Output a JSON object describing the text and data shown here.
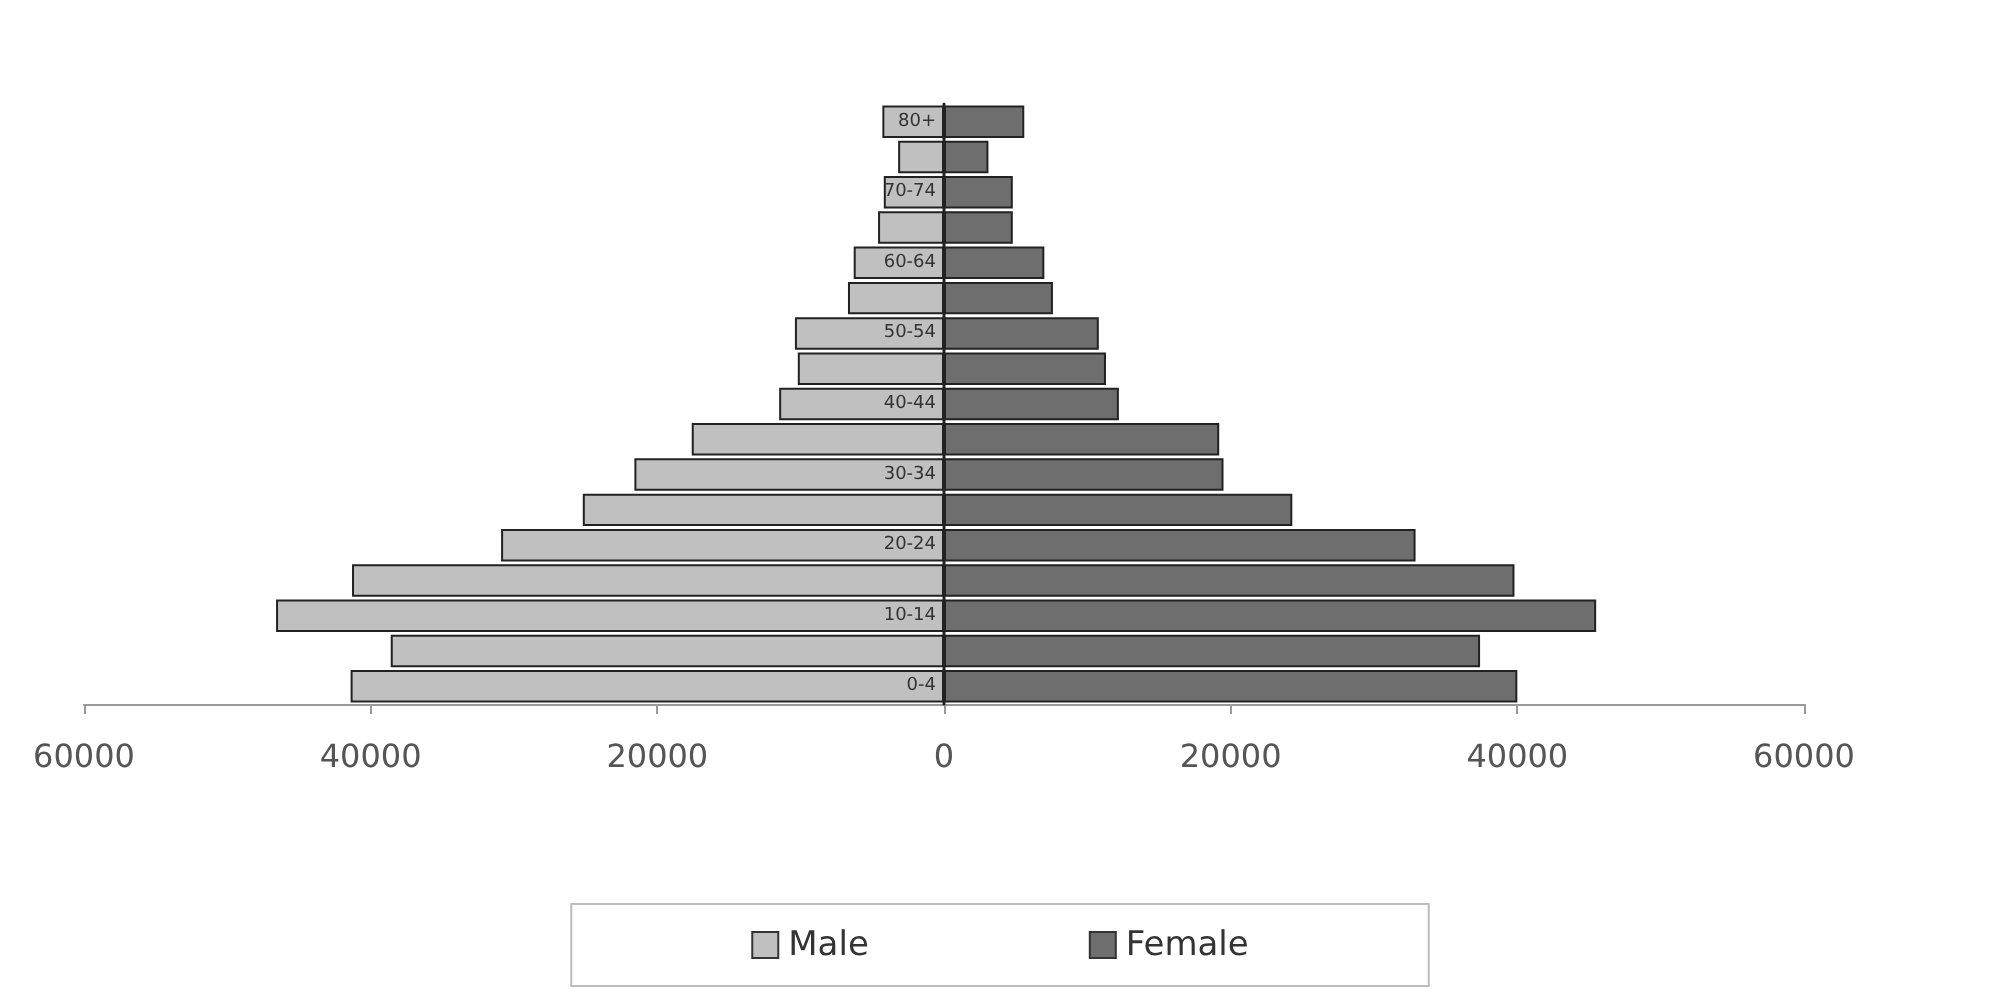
{
  "chart_data": {
    "type": "bar",
    "orientation": "horizontal",
    "categories": [
      "80+",
      null,
      "70-74",
      null,
      "60-64",
      null,
      "50-54",
      null,
      "40-44",
      null,
      "30-34",
      null,
      "20-24",
      null,
      "10-14",
      null,
      "0-4"
    ],
    "series": [
      {
        "name": "Male",
        "color": "#c0c0c0",
        "values": [
          -4300,
          -3200,
          -4200,
          -4600,
          -6300,
          -6700,
          -10400,
          -10200,
          -11500,
          -17600,
          -21600,
          -25200,
          -30900,
          -41300,
          -46600,
          -38600,
          -41400
        ]
      },
      {
        "name": "Female",
        "color": "#6e6e6e",
        "values": [
          5600,
          3100,
          4800,
          4800,
          7000,
          7600,
          10800,
          11300,
          12200,
          19200,
          19500,
          24300,
          32900,
          39800,
          45500,
          37400,
          40000
        ]
      }
    ],
    "xlim": [
      -60000,
      60000
    ],
    "xticks": [
      {
        "value": -60000,
        "label": "60000"
      },
      {
        "value": -40000,
        "label": "40000"
      },
      {
        "value": -20000,
        "label": "20000"
      },
      0,
      20000,
      40000,
      60000
    ],
    "stacked": true,
    "grid": false,
    "legend": "bottom"
  }
}
